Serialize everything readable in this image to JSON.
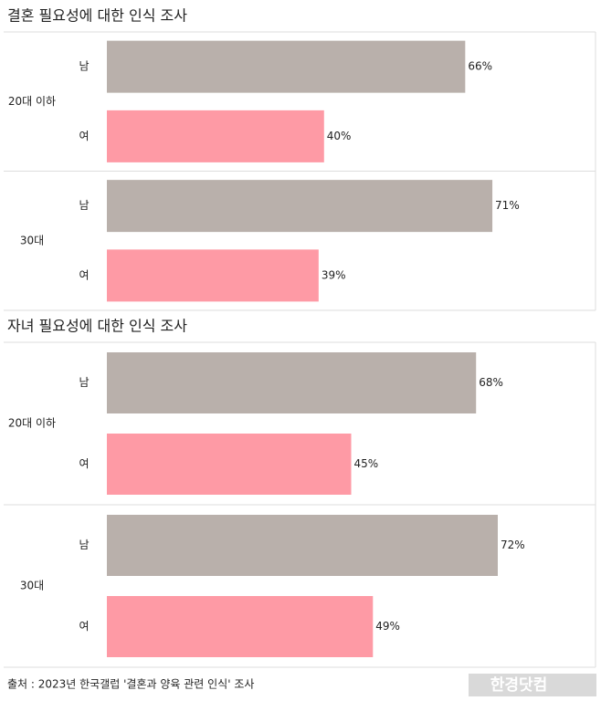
{
  "chart_data": [
    {
      "type": "bar",
      "title": "결혼 필요성에 대한 인식 조사",
      "groups": [
        "20대 이하",
        "30대"
      ],
      "categories": [
        "남",
        "여",
        "남",
        "여"
      ],
      "values": [
        66,
        40,
        71,
        39
      ],
      "value_labels": [
        "66%",
        "40%",
        "71%",
        "39%"
      ],
      "colors": [
        "#b9b0ab",
        "#fe9aa5",
        "#b9b0ab",
        "#fe9aa5"
      ],
      "xlim": [
        0,
        90
      ]
    },
    {
      "type": "bar",
      "title": "자녀 필요성에 대한 인식 조사",
      "groups": [
        "20대 이하",
        "30대"
      ],
      "categories": [
        "남",
        "여",
        "남",
        "여"
      ],
      "values": [
        68,
        45,
        72,
        49
      ],
      "value_labels": [
        "68%",
        "45%",
        "72%",
        "49%"
      ],
      "colors": [
        "#b9b0ab",
        "#fe9aa5",
        "#b9b0ab",
        "#fe9aa5"
      ],
      "xlim": [
        0,
        90
      ]
    }
  ],
  "source": "출처 : 2023년 한국갤럽 '결혼과 양육 관련 인식' 조사",
  "logo": "한경닷컴"
}
